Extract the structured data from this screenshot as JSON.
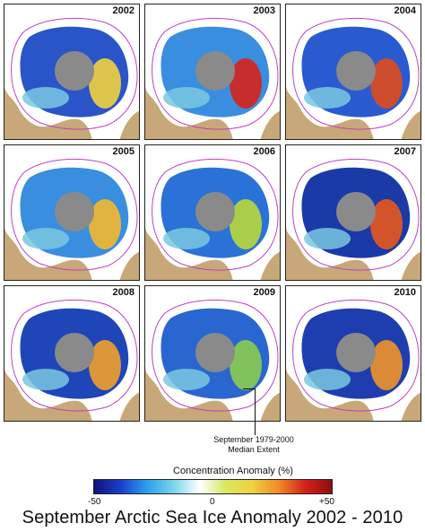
{
  "panels": [
    {
      "year": "2002",
      "blue": "#2a55c8",
      "warm": "#f0d23c"
    },
    {
      "year": "2003",
      "blue": "#3a8ee0",
      "warm": "#d8221a"
    },
    {
      "year": "2004",
      "blue": "#2a5ad0",
      "warm": "#e04a1c"
    },
    {
      "year": "2005",
      "blue": "#3a8ee0",
      "warm": "#f4b830"
    },
    {
      "year": "2006",
      "blue": "#2a72d8",
      "warm": "#b8d83a"
    },
    {
      "year": "2007",
      "blue": "#1a3aa8",
      "warm": "#e8581c"
    },
    {
      "year": "2008",
      "blue": "#1e46b8",
      "warm": "#f0a02a"
    },
    {
      "year": "2009",
      "blue": "#2a66d0",
      "warm": "#8ccc50"
    },
    {
      "year": "2010",
      "blue": "#1e3eb0",
      "warm": "#f09428"
    }
  ],
  "annotation": {
    "line1": "September 1979-2000",
    "line2": "Median Extent"
  },
  "legend": {
    "title": "Concentration Anomaly (%)",
    "min_label": "-50",
    "mid_label": "0",
    "max_label": "+50",
    "colors": [
      "#12127a",
      "#1a3ecc",
      "#2aa0ec",
      "#7ad4ec",
      "#ffffff",
      "#d8e860",
      "#f0d040",
      "#f08a28",
      "#d42018",
      "#8c1010"
    ]
  },
  "title": "September Arctic Sea Ice Anomaly 2002 - 2010",
  "colors": {
    "land": "#c8a878",
    "ocean": "#ffffff",
    "pole_hole": "#8a8a8a",
    "median_line": "#c040c0"
  }
}
